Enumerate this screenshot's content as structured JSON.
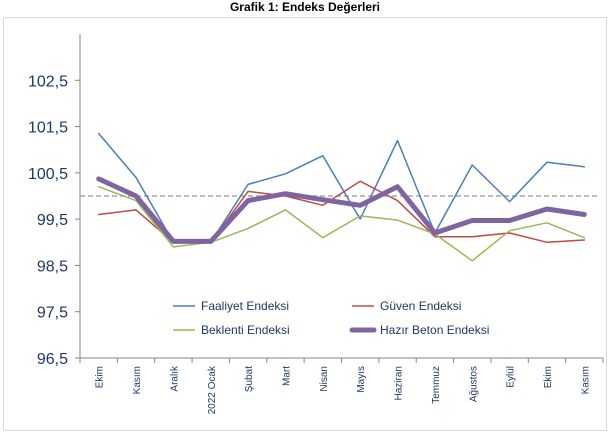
{
  "title": "Grafik 1: Endeks Değerleri",
  "chart_data": {
    "type": "line",
    "title": "Grafik 1: Endeks Değerleri",
    "categories": [
      "Ekim",
      "Kasım",
      "Aralık",
      "2022 Ocak",
      "Şubat",
      "Mart",
      "Nisan",
      "Mayıs",
      "Haziran",
      "Temmuz",
      "Ağustos",
      "Eylül",
      "Ekim",
      "Kasım"
    ],
    "ylim": [
      96.5,
      103.5
    ],
    "yticks": [
      "96,5",
      "97,5",
      "98,5",
      "99,5",
      "100,5",
      "101,5",
      "102,5"
    ],
    "ytick_values": [
      96.5,
      97.5,
      98.5,
      99.5,
      100.5,
      101.5,
      102.5
    ],
    "reference_line": 100,
    "grid": false,
    "legend_position": "bottom-inside",
    "series": [
      {
        "name": "Faaliyet Endeksi",
        "color": "#4a7ebb",
        "values": [
          101.35,
          100.4,
          99.0,
          99.0,
          100.25,
          100.48,
          100.87,
          99.5,
          101.2,
          99.2,
          100.67,
          99.88,
          100.73,
          100.63
        ]
      },
      {
        "name": "Güven Endeksi",
        "color": "#be4b48",
        "values": [
          99.6,
          99.7,
          99.0,
          99.0,
          100.1,
          100.0,
          99.8,
          100.32,
          99.9,
          99.12,
          99.12,
          99.2,
          99.0,
          99.05
        ]
      },
      {
        "name": "Beklenti Endeksi",
        "color": "#98b954",
        "values": [
          100.2,
          99.9,
          98.9,
          99.0,
          99.3,
          99.7,
          99.1,
          99.57,
          99.48,
          99.18,
          98.6,
          99.25,
          99.42,
          99.1
        ]
      },
      {
        "name": "Hazır Beton Endeksi",
        "color": "#8064a2",
        "values": [
          100.37,
          100.0,
          99.02,
          99.02,
          99.9,
          100.05,
          99.92,
          99.8,
          100.2,
          99.2,
          99.47,
          99.47,
          99.72,
          99.6
        ]
      }
    ]
  }
}
